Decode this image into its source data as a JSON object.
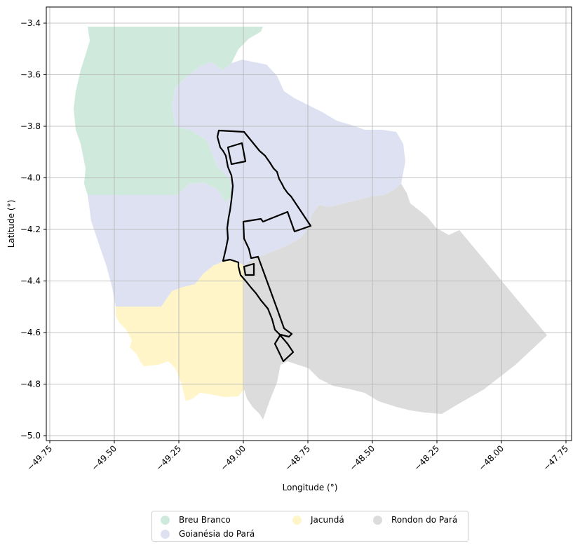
{
  "chart_data": {
    "type": "map",
    "xlabel": "Longitude (°)",
    "ylabel": "Latitude (°)",
    "xlim": [
      -49.77,
      -47.73
    ],
    "ylim": [
      -5.02,
      -3.34
    ],
    "x_ticks": [
      "−49.75",
      "−49.50",
      "−49.25",
      "−49.00",
      "−48.75",
      "−48.50",
      "−48.25",
      "−48.00",
      "−47.75"
    ],
    "y_ticks": [
      "−3.4",
      "−3.6",
      "−3.8",
      "−4.0",
      "−4.2",
      "−4.4",
      "−4.6",
      "−4.8",
      "−5.0"
    ],
    "grid": true,
    "legend_position": "bottom-center",
    "regions": [
      {
        "name": "Breu Branco",
        "color": "#cfeadd"
      },
      {
        "name": "Goianésia do Pará",
        "color": "#dee1f1"
      },
      {
        "name": "Jacundá",
        "color": "#fff5c8"
      },
      {
        "name": "Rondon do Pará",
        "color": "#dcdcdc"
      }
    ],
    "overlay": "black outlined study area boundary"
  }
}
